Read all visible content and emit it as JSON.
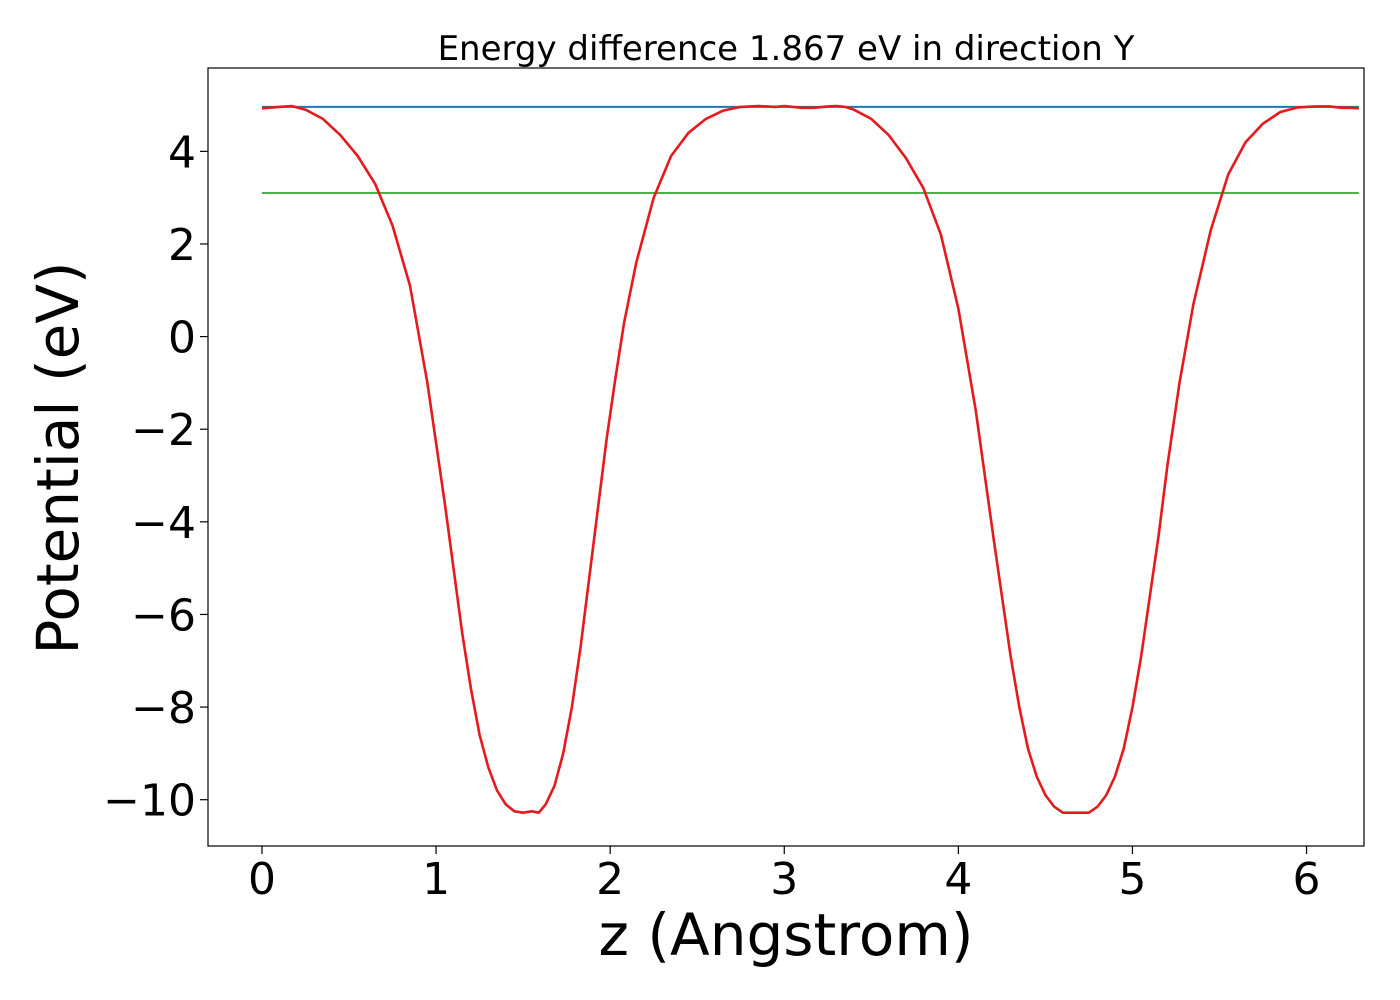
{
  "chart_data": {
    "type": "line",
    "title": "Energy difference 1.867 eV in direction Y",
    "xlabel": "z (Angstrom)",
    "ylabel": "Potential (eV)",
    "xlim": [
      -0.31,
      6.33
    ],
    "ylim": [
      -11.0,
      5.8
    ],
    "xticks": [
      0,
      1,
      2,
      3,
      4,
      5,
      6
    ],
    "xtick_labels": [
      "0",
      "1",
      "2",
      "3",
      "4",
      "5",
      "6"
    ],
    "yticks": [
      -10,
      -8,
      -6,
      -4,
      -2,
      0,
      2,
      4
    ],
    "ytick_labels": [
      "−10",
      "−8",
      "−6",
      "−4",
      "−2",
      "0",
      "2",
      "4"
    ],
    "grid": false,
    "series": [
      {
        "name": "potential",
        "color": "#e41a1c",
        "x": [
          0.0,
          0.1,
          0.17,
          0.25,
          0.35,
          0.45,
          0.55,
          0.65,
          0.75,
          0.85,
          0.95,
          1.05,
          1.1,
          1.15,
          1.2,
          1.25,
          1.3,
          1.35,
          1.4,
          1.45,
          1.5,
          1.55,
          1.59,
          1.63,
          1.68,
          1.73,
          1.78,
          1.83,
          1.88,
          1.93,
          1.98,
          2.03,
          2.08,
          2.15,
          2.25,
          2.35,
          2.45,
          2.55,
          2.65,
          2.75,
          2.85,
          2.95,
          3.0,
          3.05,
          3.1,
          3.17,
          3.25,
          3.3,
          3.35,
          3.4,
          3.5,
          3.6,
          3.7,
          3.8,
          3.9,
          4.0,
          4.1,
          4.2,
          4.25,
          4.3,
          4.35,
          4.4,
          4.45,
          4.5,
          4.55,
          4.6,
          4.65,
          4.7,
          4.75,
          4.8,
          4.85,
          4.9,
          4.95,
          5.0,
          5.05,
          5.1,
          5.15,
          5.2,
          5.27,
          5.35,
          5.45,
          5.55,
          5.65,
          5.75,
          5.85,
          5.95,
          6.05,
          6.13,
          6.2,
          6.25,
          6.3
        ],
        "y": [
          4.93,
          4.96,
          4.98,
          4.9,
          4.7,
          4.35,
          3.9,
          3.3,
          2.4,
          1.1,
          -1.0,
          -3.6,
          -5.0,
          -6.4,
          -7.6,
          -8.6,
          -9.3,
          -9.8,
          -10.1,
          -10.25,
          -10.28,
          -10.25,
          -10.28,
          -10.1,
          -9.7,
          -9.0,
          -8.0,
          -6.7,
          -5.2,
          -3.7,
          -2.2,
          -0.9,
          0.3,
          1.6,
          3.0,
          3.9,
          4.4,
          4.7,
          4.88,
          4.96,
          4.98,
          4.96,
          4.98,
          4.96,
          4.94,
          4.94,
          4.97,
          4.98,
          4.96,
          4.9,
          4.7,
          4.35,
          3.85,
          3.2,
          2.2,
          0.6,
          -1.6,
          -4.3,
          -5.6,
          -6.9,
          -8.0,
          -8.9,
          -9.5,
          -9.9,
          -10.15,
          -10.28,
          -10.28,
          -10.28,
          -10.28,
          -10.15,
          -9.9,
          -9.5,
          -8.9,
          -8.0,
          -6.9,
          -5.6,
          -4.3,
          -2.8,
          -1.0,
          0.7,
          2.3,
          3.5,
          4.2,
          4.6,
          4.85,
          4.95,
          4.97,
          4.97,
          4.94,
          4.94,
          4.93
        ]
      },
      {
        "name": "vacuum level",
        "color": "#1f77b4",
        "x": [
          0.0,
          6.3
        ],
        "y": [
          4.96,
          4.96
        ]
      },
      {
        "name": "reference level",
        "color": "#4daf4a",
        "x": [
          0.0,
          6.3
        ],
        "y": [
          3.1,
          3.1
        ]
      }
    ]
  }
}
